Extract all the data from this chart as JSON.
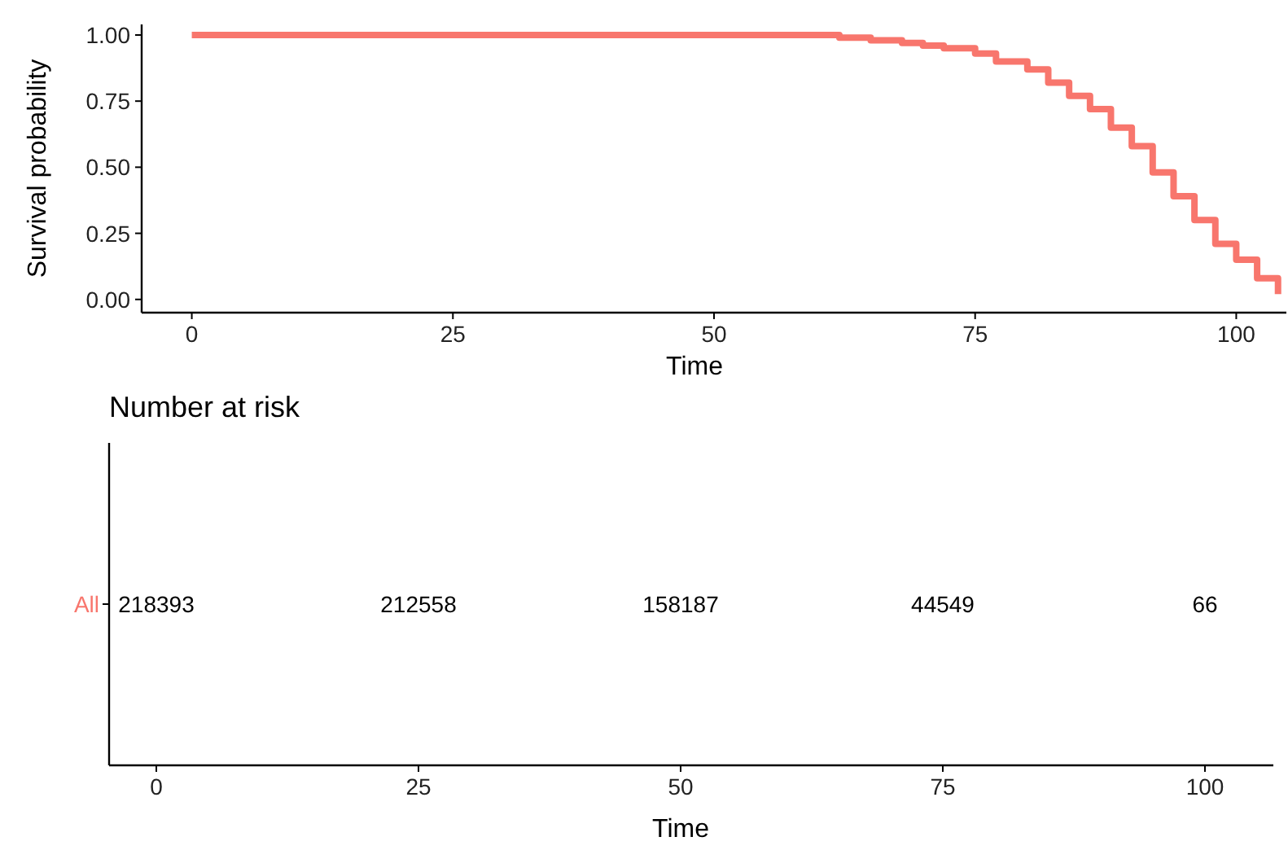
{
  "chart_data": [
    {
      "type": "step",
      "xlabel": "Time",
      "ylabel": "Survival probability",
      "x": [
        0,
        58,
        62,
        65,
        68,
        70,
        72,
        75,
        77,
        80,
        82,
        84,
        86,
        88,
        90,
        92,
        94,
        96,
        98,
        100,
        102,
        104
      ],
      "series": [
        {
          "color": "#f8766d",
          "values": [
            1.0,
            1.0,
            0.99,
            0.98,
            0.97,
            0.96,
            0.95,
            0.93,
            0.9,
            0.87,
            0.82,
            0.77,
            0.72,
            0.65,
            0.58,
            0.48,
            0.39,
            0.3,
            0.21,
            0.15,
            0.08,
            0.02
          ]
        }
      ],
      "xlim": [
        -4.8,
        104.8
      ],
      "xticks": [
        0,
        25,
        50,
        75,
        100
      ],
      "ylim": [
        -0.05,
        1.04
      ],
      "yticks": [
        {
          "value": 0,
          "label": "0.00"
        },
        {
          "value": 0.25,
          "label": "0.25"
        },
        {
          "value": 0.5,
          "label": "0.50"
        },
        {
          "value": 0.75,
          "label": "0.75"
        },
        {
          "value": 1,
          "label": "1.00"
        }
      ],
      "grid": false
    },
    {
      "type": "heatmap",
      "title": "Number at risk",
      "xlabel": "Time",
      "categories": [
        "0",
        "25",
        "50",
        "75",
        "100"
      ],
      "y_categories": [
        "All"
      ],
      "cells": [
        [
          218393,
          212558,
          158187,
          44549,
          66
        ]
      ],
      "data_labels": true
    }
  ]
}
